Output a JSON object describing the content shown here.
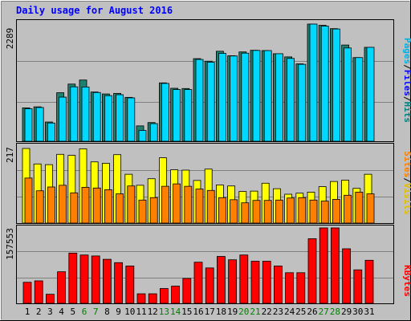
{
  "title": "Daily usage for August 2016",
  "colors": {
    "background": "#c0c0c0",
    "title": "#0000ff",
    "hits": "#00d8ff",
    "files": "#00f0f0",
    "files_label": "#0000ff",
    "hits_label": "#008080",
    "pages_label": "#00b0e0",
    "sites": "#ff8000",
    "visits": "#ffff00",
    "visits_label": "#e0c000",
    "kbytes": "#ff0000",
    "weekend": "#008000"
  },
  "chart_data": [
    {
      "type": "bar",
      "name": "hits-files-pages",
      "ymax_label": "2289",
      "ymax": 2289,
      "legend": [
        "Pages",
        "/",
        "Files",
        "/",
        "Hits"
      ],
      "x": [
        1,
        2,
        3,
        4,
        5,
        6,
        7,
        8,
        9,
        10,
        11,
        12,
        13,
        14,
        15,
        16,
        17,
        18,
        19,
        20,
        21,
        22,
        23,
        24,
        25,
        26,
        27,
        28,
        29,
        30,
        31
      ],
      "series": [
        {
          "name": "Hits",
          "values": [
            652,
            672,
            376,
            948,
            1117,
            1196,
            962,
            924,
            935,
            857,
            300,
            365,
            1140,
            1035,
            1030,
            1614,
            1564,
            1758,
            1670,
            1745,
            1777,
            1771,
            1710,
            1648,
            1512,
            2289,
            2265,
            2200,
            1880,
            1634,
            1835
          ]
        },
        {
          "name": "Files",
          "values": [
            635,
            659,
            356,
            862,
            1063,
            1060,
            952,
            891,
            909,
            847,
            211,
            344,
            1130,
            1010,
            1010,
            1598,
            1544,
            1718,
            1666,
            1721,
            1774,
            1771,
            1710,
            1618,
            1503,
            2289,
            2250,
            2193,
            1822,
            1634,
            1835
          ]
        },
        {
          "name": "Pages",
          "values": [
            0,
            0,
            0,
            0,
            0,
            0,
            0,
            0,
            0,
            0,
            0,
            0,
            0,
            0,
            0,
            0,
            0,
            0,
            0,
            0,
            0,
            0,
            0,
            0,
            0,
            0,
            0,
            0,
            0,
            0,
            0
          ]
        }
      ]
    },
    {
      "type": "bar",
      "name": "visits-sites",
      "ymax_label": "217",
      "ymax": 217,
      "legend": [
        "Sites",
        "/",
        "Visits"
      ],
      "x": [
        1,
        2,
        3,
        4,
        5,
        6,
        7,
        8,
        9,
        10,
        11,
        12,
        13,
        14,
        15,
        16,
        17,
        18,
        19,
        20,
        21,
        22,
        23,
        24,
        25,
        26,
        27,
        28,
        29,
        30,
        31
      ],
      "series": [
        {
          "name": "Visits",
          "values": [
            217,
            172,
            170,
            200,
            197,
            216,
            178,
            174,
            199,
            142,
            110,
            129,
            190,
            155,
            154,
            124,
            157,
            111,
            108,
            92,
            93,
            116,
            100,
            84,
            87,
            90,
            106,
            121,
            125,
            101,
            142
          ]
        },
        {
          "name": "Sites",
          "values": [
            131,
            94,
            105,
            110,
            88,
            104,
            102,
            97,
            85,
            108,
            67,
            74,
            107,
            114,
            107,
            99,
            95,
            74,
            68,
            59,
            66,
            66,
            67,
            73,
            74,
            67,
            64,
            69,
            81,
            90,
            85
          ]
        }
      ]
    },
    {
      "type": "bar",
      "name": "kbytes",
      "ymax_label": "157553",
      "ymax": 157553,
      "legend": [
        "KBytes"
      ],
      "x": [
        1,
        2,
        3,
        4,
        5,
        6,
        7,
        8,
        9,
        10,
        11,
        12,
        13,
        14,
        15,
        16,
        17,
        18,
        19,
        20,
        21,
        22,
        23,
        24,
        25,
        26,
        27,
        28,
        29,
        30,
        31
      ],
      "series": [
        {
          "name": "KBytes",
          "values": [
            44000,
            47000,
            19000,
            66000,
            105000,
            101000,
            99000,
            92000,
            85000,
            78000,
            20000,
            20000,
            31000,
            36000,
            52000,
            86000,
            74000,
            98000,
            91000,
            101000,
            88000,
            88000,
            78000,
            64000,
            64000,
            135000,
            157553,
            157553,
            114000,
            70000,
            90000
          ]
        }
      ]
    }
  ],
  "x_labels": [
    "1",
    "2",
    "3",
    "4",
    "5",
    "6",
    "7",
    "8",
    "9",
    "10",
    "11",
    "12",
    "13",
    "14",
    "15",
    "16",
    "17",
    "18",
    "19",
    "20",
    "21",
    "22",
    "23",
    "24",
    "25",
    "26",
    "27",
    "28",
    "29",
    "30",
    "31"
  ],
  "weekend_days": [
    6,
    7,
    13,
    14,
    20,
    21,
    27,
    28
  ]
}
